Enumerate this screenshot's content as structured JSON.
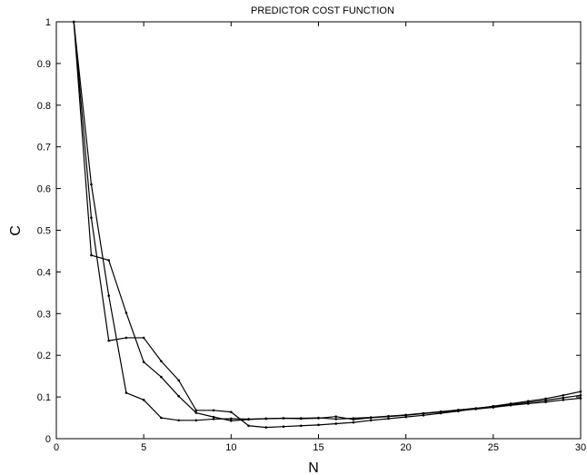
{
  "chart_data": {
    "type": "line",
    "title": "PREDICTOR COST FUNCTION",
    "xlabel": "N",
    "ylabel": "C",
    "xlim": [
      0,
      30
    ],
    "ylim": [
      0,
      1
    ],
    "xticks": [
      0,
      5,
      10,
      15,
      20,
      25,
      30
    ],
    "xtick_labels": [
      "0",
      "5",
      "10",
      "15",
      "20",
      "25",
      "30"
    ],
    "yticks": [
      0,
      0.1,
      0.2,
      0.3,
      0.4,
      0.5,
      0.6,
      0.7,
      0.8,
      0.9,
      1
    ],
    "ytick_labels": [
      "0",
      "0.1",
      "0.2",
      "0.3",
      "0.4",
      "0.5",
      "0.6",
      "0.7",
      "0.8",
      "0.9",
      "1"
    ],
    "grid": false,
    "legend": false,
    "line_color": "#000000",
    "x": [
      1,
      2,
      3,
      4,
      5,
      6,
      7,
      8,
      9,
      10,
      11,
      12,
      13,
      14,
      15,
      16,
      17,
      18,
      19,
      20,
      21,
      22,
      23,
      24,
      25,
      26,
      27,
      28,
      29,
      30
    ],
    "series": [
      {
        "values": [
          1.0,
          0.44,
          0.428,
          0.302,
          0.184,
          0.148,
          0.102,
          0.062,
          0.052,
          0.043,
          0.046,
          0.048,
          0.049,
          0.049,
          0.05,
          0.047,
          0.049,
          0.051,
          0.054,
          0.057,
          0.061,
          0.065,
          0.069,
          0.073,
          0.077,
          0.082,
          0.087,
          0.092,
          0.098,
          0.104
        ]
      },
      {
        "values": [
          1.0,
          0.61,
          0.343,
          0.11,
          0.093,
          0.05,
          0.044,
          0.044,
          0.047,
          0.048,
          0.047,
          0.048,
          0.049,
          0.048,
          0.049,
          0.053,
          0.046,
          0.05,
          0.053,
          0.056,
          0.06,
          0.064,
          0.067,
          0.071,
          0.075,
          0.08,
          0.084,
          0.088,
          0.093,
          0.097
        ]
      },
      {
        "values": [
          1.0,
          0.53,
          0.235,
          0.242,
          0.242,
          0.186,
          0.14,
          0.068,
          0.068,
          0.064,
          0.031,
          0.027,
          0.029,
          0.031,
          0.033,
          0.036,
          0.039,
          0.044,
          0.048,
          0.052,
          0.056,
          0.061,
          0.066,
          0.072,
          0.078,
          0.084,
          0.09,
          0.096,
          0.104,
          0.113
        ]
      }
    ]
  }
}
